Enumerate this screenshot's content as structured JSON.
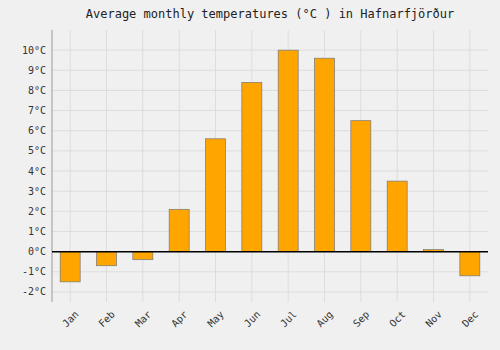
{
  "chart_data": {
    "type": "bar",
    "title": "Average monthly temperatures (°C ) in Hafnarfjörður",
    "categories": [
      "Jan",
      "Feb",
      "Mar",
      "Apr",
      "May",
      "Jun",
      "Jul",
      "Aug",
      "Sep",
      "Oct",
      "Nov",
      "Dec"
    ],
    "values": [
      -1.5,
      -0.7,
      -0.4,
      2.1,
      5.6,
      8.4,
      10.0,
      9.6,
      6.5,
      3.5,
      0.1,
      -1.2
    ],
    "color": "#FFA500",
    "ylim": [
      -2.5,
      11.0
    ],
    "yticks": [
      {
        "value": -2,
        "label": "-2°C"
      },
      {
        "value": -1,
        "label": "-1°C"
      },
      {
        "value": 0,
        "label": "0°C"
      },
      {
        "value": 1,
        "label": "1°C"
      },
      {
        "value": 2,
        "label": "2°C"
      },
      {
        "value": 3,
        "label": "3°C"
      },
      {
        "value": 4,
        "label": "4°C"
      },
      {
        "value": 5,
        "label": "5°C"
      },
      {
        "value": 6,
        "label": "6°C"
      },
      {
        "value": 7,
        "label": "7°C"
      },
      {
        "value": 8,
        "label": "8°C"
      },
      {
        "value": 9,
        "label": "9°C"
      },
      {
        "value": 10,
        "label": "10°C"
      }
    ],
    "grid": true
  }
}
